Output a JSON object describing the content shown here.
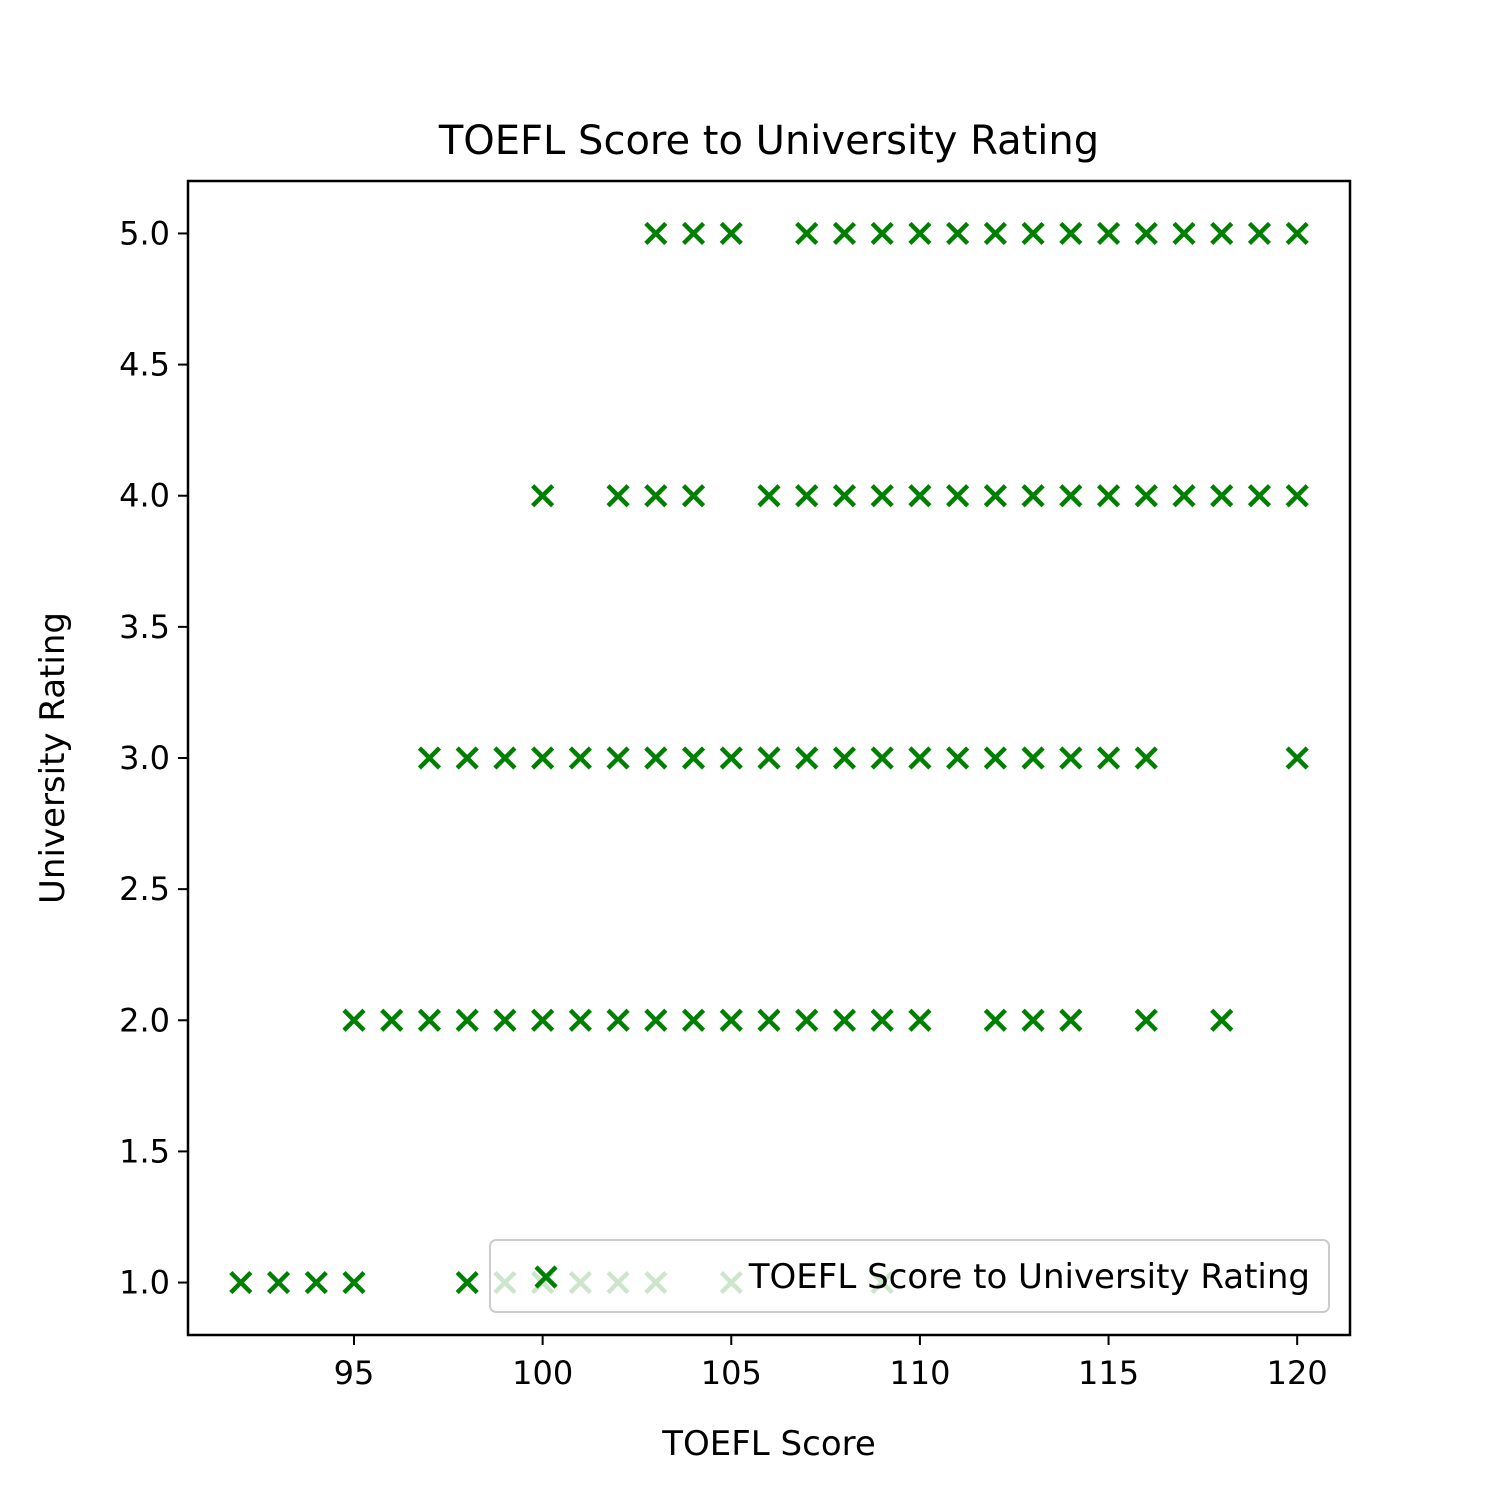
{
  "chart_data": {
    "type": "scatter",
    "title": "TOEFL Score to University Rating",
    "xlabel": "TOEFL Score",
    "ylabel": "University Rating",
    "xlim": [
      90.6,
      121.4
    ],
    "ylim": [
      0.8,
      5.2
    ],
    "xticks": [
      95,
      100,
      105,
      110,
      115,
      120
    ],
    "xtick_labels": [
      "95",
      "100",
      "105",
      "110",
      "115",
      "120"
    ],
    "yticks": [
      1.0,
      1.5,
      2.0,
      2.5,
      3.0,
      3.5,
      4.0,
      4.5,
      5.0
    ],
    "ytick_labels": [
      "1.0",
      "1.5",
      "2.0",
      "2.5",
      "3.0",
      "3.5",
      "4.0",
      "4.5",
      "5.0"
    ],
    "grid": false,
    "legend": {
      "position": "lower right",
      "entries": [
        "TOEFL Score to University Rating"
      ]
    },
    "series": [
      {
        "name": "TOEFL Score to University Rating",
        "marker": "x",
        "color": "#008000",
        "points": [
          [
            103,
            5
          ],
          [
            104,
            5
          ],
          [
            105,
            5
          ],
          [
            107,
            5
          ],
          [
            108,
            5
          ],
          [
            109,
            5
          ],
          [
            110,
            5
          ],
          [
            111,
            5
          ],
          [
            112,
            5
          ],
          [
            113,
            5
          ],
          [
            114,
            5
          ],
          [
            115,
            5
          ],
          [
            116,
            5
          ],
          [
            117,
            5
          ],
          [
            118,
            5
          ],
          [
            119,
            5
          ],
          [
            120,
            5
          ],
          [
            100,
            4
          ],
          [
            102,
            4
          ],
          [
            103,
            4
          ],
          [
            104,
            4
          ],
          [
            106,
            4
          ],
          [
            107,
            4
          ],
          [
            108,
            4
          ],
          [
            109,
            4
          ],
          [
            110,
            4
          ],
          [
            111,
            4
          ],
          [
            112,
            4
          ],
          [
            113,
            4
          ],
          [
            114,
            4
          ],
          [
            115,
            4
          ],
          [
            116,
            4
          ],
          [
            117,
            4
          ],
          [
            118,
            4
          ],
          [
            119,
            4
          ],
          [
            120,
            4
          ],
          [
            97,
            3
          ],
          [
            98,
            3
          ],
          [
            99,
            3
          ],
          [
            100,
            3
          ],
          [
            101,
            3
          ],
          [
            102,
            3
          ],
          [
            103,
            3
          ],
          [
            104,
            3
          ],
          [
            105,
            3
          ],
          [
            106,
            3
          ],
          [
            107,
            3
          ],
          [
            108,
            3
          ],
          [
            109,
            3
          ],
          [
            110,
            3
          ],
          [
            111,
            3
          ],
          [
            112,
            3
          ],
          [
            113,
            3
          ],
          [
            114,
            3
          ],
          [
            115,
            3
          ],
          [
            116,
            3
          ],
          [
            120,
            3
          ],
          [
            95,
            2
          ],
          [
            96,
            2
          ],
          [
            97,
            2
          ],
          [
            98,
            2
          ],
          [
            99,
            2
          ],
          [
            100,
            2
          ],
          [
            101,
            2
          ],
          [
            102,
            2
          ],
          [
            103,
            2
          ],
          [
            104,
            2
          ],
          [
            105,
            2
          ],
          [
            106,
            2
          ],
          [
            107,
            2
          ],
          [
            108,
            2
          ],
          [
            109,
            2
          ],
          [
            110,
            2
          ],
          [
            112,
            2
          ],
          [
            113,
            2
          ],
          [
            114,
            2
          ],
          [
            116,
            2
          ],
          [
            118,
            2
          ],
          [
            92,
            1
          ],
          [
            93,
            1
          ],
          [
            94,
            1
          ],
          [
            95,
            1
          ],
          [
            98,
            1
          ],
          [
            99,
            1
          ],
          [
            100,
            1
          ],
          [
            101,
            1
          ],
          [
            102,
            1
          ],
          [
            103,
            1
          ],
          [
            105,
            1
          ],
          [
            109,
            1
          ]
        ]
      }
    ]
  }
}
